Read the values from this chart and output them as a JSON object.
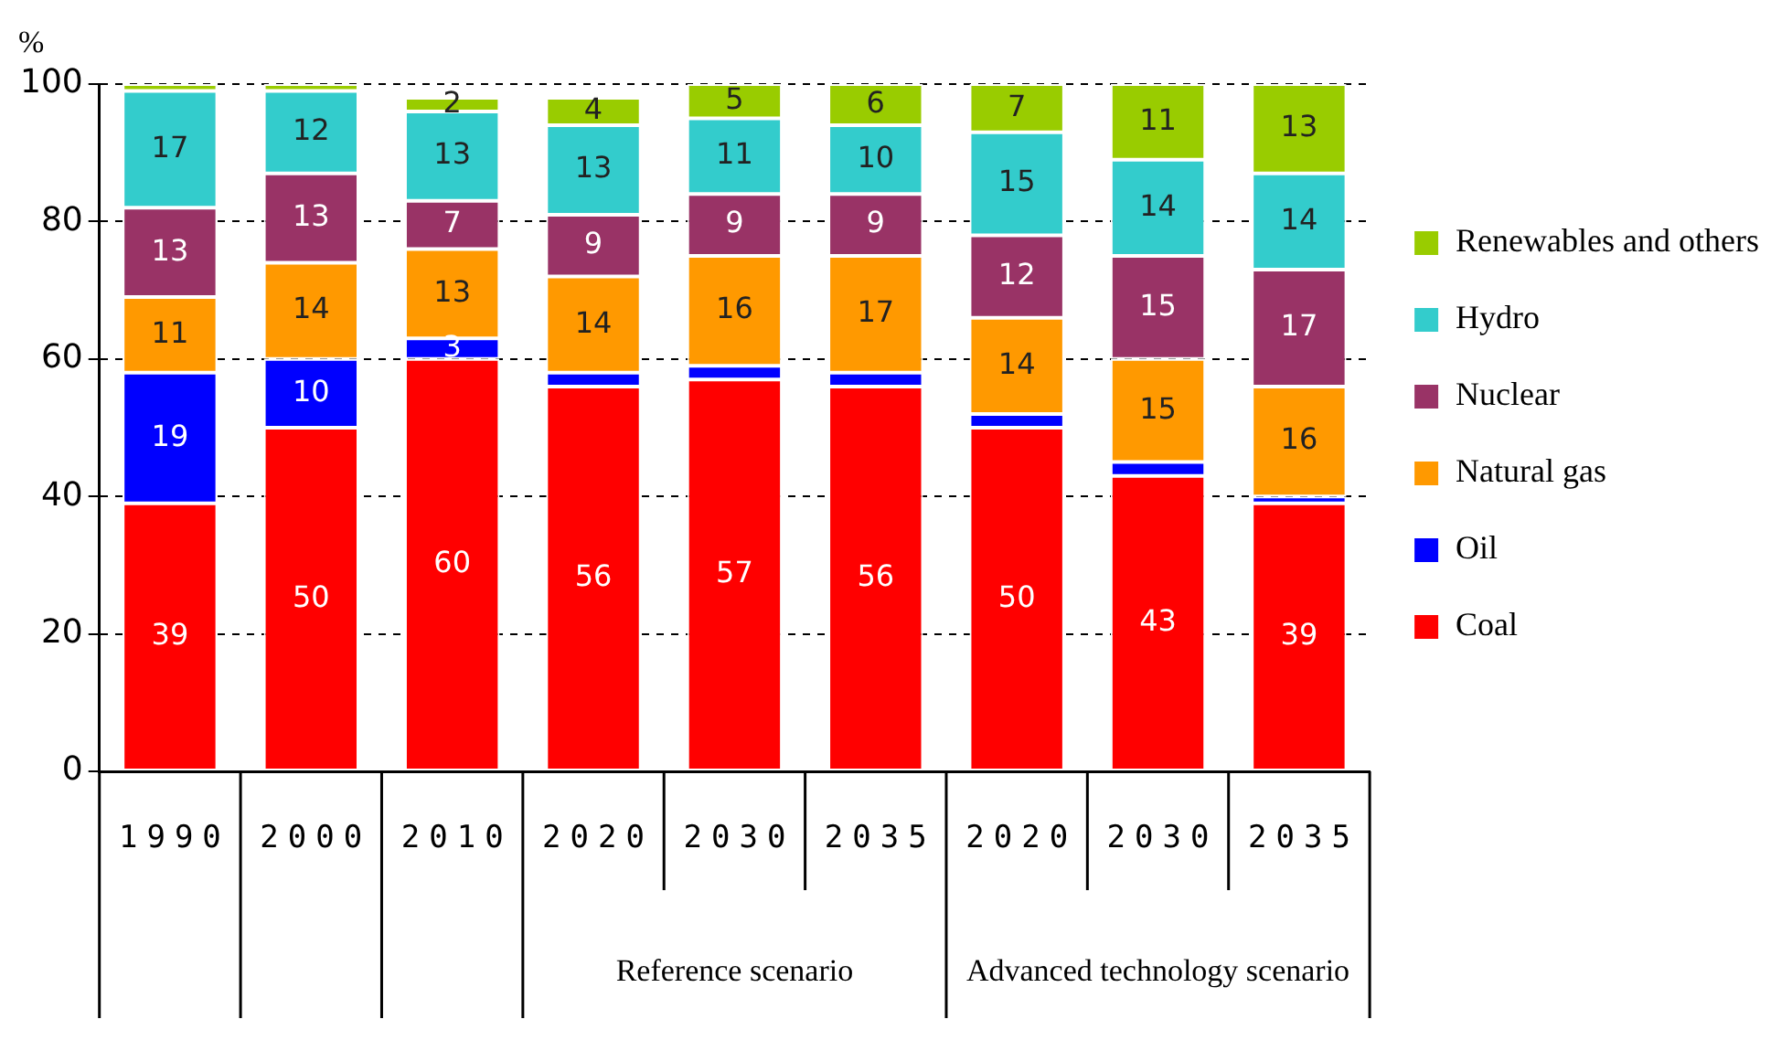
{
  "chart_data": {
    "type": "bar",
    "stacked": true,
    "ylabel": "%",
    "categories": [
      "1990",
      "2000",
      "2010",
      "2020",
      "2030",
      "2035",
      "2020",
      "2030",
      "2035"
    ],
    "series": [
      {
        "name": "Coal",
        "color": "#ff0000",
        "values": [
          39,
          50,
          60,
          56,
          57,
          56,
          50,
          43,
          39
        ],
        "value_labels": [
          "39",
          "50",
          "60",
          "56",
          "57",
          "56",
          "50",
          "43",
          "39"
        ]
      },
      {
        "name": "Oil",
        "color": "#0000ff",
        "values": [
          19,
          10,
          3,
          2,
          2,
          2,
          2,
          2,
          1
        ],
        "value_labels": [
          "19",
          "10",
          "3",
          null,
          null,
          null,
          null,
          null,
          null
        ]
      },
      {
        "name": "Natural gas",
        "color": "#ff9900",
        "values": [
          11,
          14,
          13,
          14,
          16,
          17,
          14,
          15,
          16
        ],
        "value_labels": [
          "11",
          "14",
          "13",
          "14",
          "16",
          "17",
          "14",
          "15",
          "16"
        ]
      },
      {
        "name": "Nuclear",
        "color": "#993366",
        "values": [
          13,
          13,
          7,
          9,
          9,
          9,
          12,
          15,
          17
        ],
        "value_labels": [
          "13",
          "13",
          "7",
          "9",
          "9",
          "9",
          "12",
          "15",
          "17"
        ]
      },
      {
        "name": "Hydro",
        "color": "#33cccc",
        "values": [
          17,
          12,
          13,
          13,
          11,
          10,
          15,
          14,
          14
        ],
        "value_labels": [
          "17",
          "12",
          "13",
          "13",
          "11",
          "10",
          "15",
          "14",
          "14"
        ]
      },
      {
        "name": "Renewables and others",
        "color": "#99cc00",
        "values": [
          1,
          1,
          2,
          4,
          5,
          6,
          7,
          11,
          13
        ],
        "value_labels": [
          null,
          null,
          "2",
          "4",
          "5",
          "6",
          "7",
          "11",
          "13"
        ]
      }
    ],
    "ylim": [
      0,
      100
    ],
    "yticks": [
      0,
      20,
      40,
      60,
      80,
      100
    ],
    "grid": "y",
    "legend": "right",
    "annotations": [
      "Reference scenario",
      "Advanced technology scenario"
    ]
  }
}
